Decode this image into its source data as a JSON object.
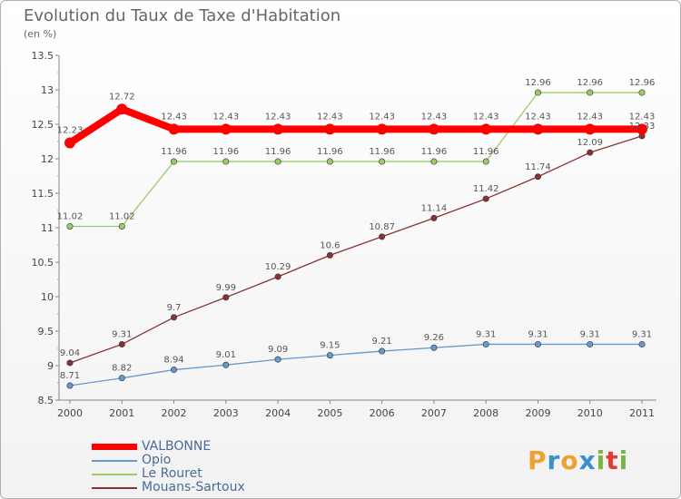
{
  "chart_data": {
    "type": "line",
    "title": "Evolution du Taux de Taxe d'Habitation",
    "subtitle": "(en %)",
    "x": [
      "2000",
      "2001",
      "2002",
      "2003",
      "2004",
      "2005",
      "2006",
      "2007",
      "2008",
      "2009",
      "2010",
      "2011"
    ],
    "ylim": [
      8.5,
      13.5
    ],
    "yticks": [
      "8.5",
      "9",
      "9.5",
      "10",
      "10.5",
      "11",
      "11.5",
      "12",
      "12.5",
      "13",
      "13.5"
    ],
    "grid": false,
    "legend_position": "bottom-left",
    "series": [
      {
        "name": "VALBONNE",
        "color": "#ff0000",
        "values": [
          12.23,
          12.72,
          12.43,
          12.43,
          12.43,
          12.43,
          12.43,
          12.43,
          12.43,
          12.43,
          12.43,
          12.43
        ],
        "labels": [
          "12.23",
          "12.72",
          "12.43",
          "12.43",
          "12.43",
          "12.43",
          "12.43",
          "12.43",
          "12.43",
          "12.43",
          "12.43",
          "12.43"
        ]
      },
      {
        "name": "Opio",
        "color": "#6699cc",
        "values": [
          8.71,
          8.82,
          8.94,
          9.01,
          9.09,
          9.15,
          9.21,
          9.26,
          9.31,
          9.31,
          9.31,
          9.31
        ],
        "labels": [
          "8.71",
          "8.82",
          "8.94",
          "9.01",
          "9.09",
          "9.15",
          "9.21",
          "9.26",
          "9.31",
          "9.31",
          "9.31",
          "9.31"
        ]
      },
      {
        "name": "Le Rouret",
        "color": "#99cc66",
        "values": [
          11.02,
          11.02,
          11.96,
          11.96,
          11.96,
          11.96,
          11.96,
          11.96,
          11.96,
          12.96,
          12.96,
          12.96
        ],
        "labels": [
          "11.02",
          "11.02",
          "11.96",
          "11.96",
          "11.96",
          "11.96",
          "11.96",
          "11.96",
          "11.96",
          "12.96",
          "12.96",
          "12.96"
        ]
      },
      {
        "name": "Mouans-Sartoux",
        "color": "#883333",
        "values": [
          9.04,
          9.31,
          9.7,
          9.99,
          10.29,
          10.6,
          10.87,
          11.14,
          11.42,
          11.74,
          12.09,
          12.33
        ],
        "labels": [
          "9.04",
          "9.31",
          "9.7",
          "9.99",
          "10.29",
          "10.6",
          "10.87",
          "11.14",
          "11.42",
          "11.74",
          "12.09",
          "12.33"
        ]
      }
    ]
  },
  "logo": {
    "letters": [
      "P",
      "r",
      "o",
      "x",
      "i",
      "t",
      "i"
    ],
    "colors": [
      "#f0a030",
      "#3a8fd0",
      "#f0a030",
      "#3a8fd0",
      "#7cb342",
      "#e53935",
      "#7cb342"
    ]
  }
}
